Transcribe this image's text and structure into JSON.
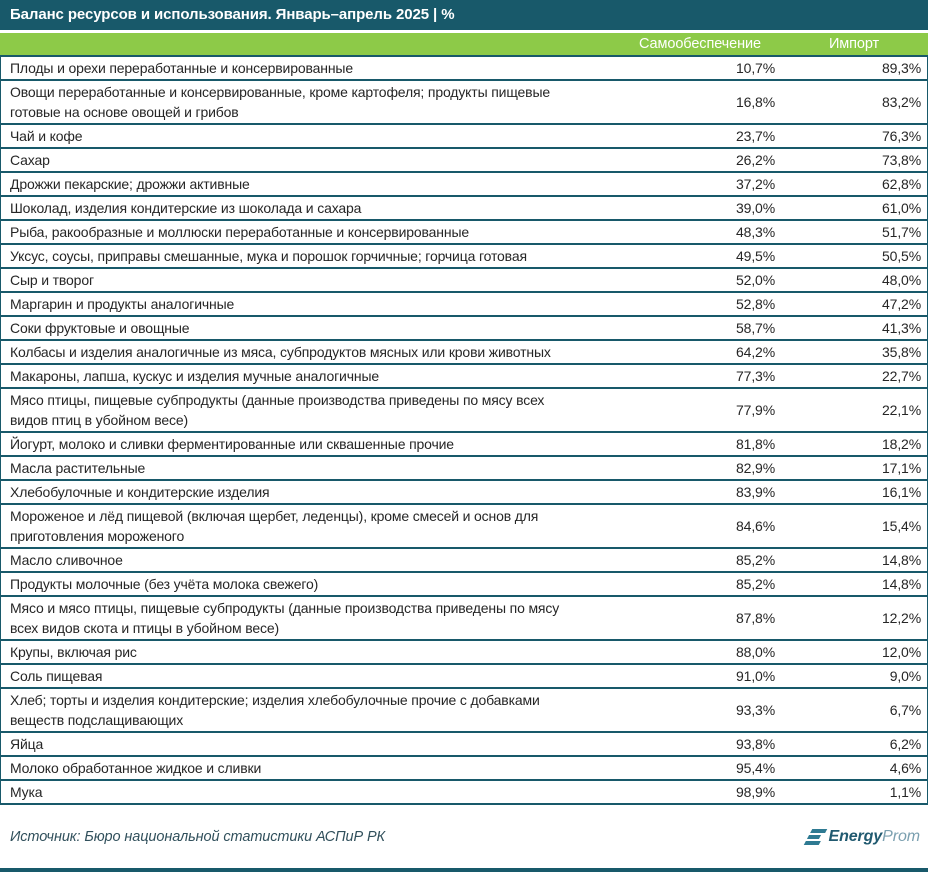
{
  "chart_data": {
    "type": "table",
    "title": "Баланс ресурсов и использования. Январь–апрель 2025 | %",
    "unit": "%",
    "columns": [
      "Самообеспечение",
      "Импорт"
    ],
    "rows": [
      {
        "name": "Плоды и орехи переработанные и консервированные",
        "self_sufficiency": "10,7%",
        "import": "89,3%"
      },
      {
        "name": "Овощи переработанные и консервированные, кроме картофеля; продукты пищевые готовые на основе овощей и грибов",
        "self_sufficiency": "16,8%",
        "import": "83,2%"
      },
      {
        "name": "Чай и кофе",
        "self_sufficiency": "23,7%",
        "import": "76,3%"
      },
      {
        "name": "Сахар",
        "self_sufficiency": "26,2%",
        "import": "73,8%"
      },
      {
        "name": "Дрожжи пекарские; дрожжи активные",
        "self_sufficiency": "37,2%",
        "import": "62,8%"
      },
      {
        "name": "Шоколад, изделия кондитерские из шоколада и сахара",
        "self_sufficiency": "39,0%",
        "import": "61,0%"
      },
      {
        "name": "Рыба, ракообразные и моллюски переработанные и консервированные",
        "self_sufficiency": "48,3%",
        "import": "51,7%"
      },
      {
        "name": "Уксус, соусы, приправы смешанные, мука и порошок горчичные; горчица готовая",
        "self_sufficiency": "49,5%",
        "import": "50,5%"
      },
      {
        "name": "Сыр и творог",
        "self_sufficiency": "52,0%",
        "import": "48,0%"
      },
      {
        "name": "Маргарин и продукты аналогичные",
        "self_sufficiency": "52,8%",
        "import": "47,2%"
      },
      {
        "name": "Соки фруктовые и овощные",
        "self_sufficiency": "58,7%",
        "import": "41,3%"
      },
      {
        "name": "Колбасы и изделия аналогичные из мяса, субпродуктов мясных или крови животных",
        "self_sufficiency": "64,2%",
        "import": "35,8%"
      },
      {
        "name": "Макароны, лапша, кускус и изделия мучные аналогичные",
        "self_sufficiency": "77,3%",
        "import": "22,7%"
      },
      {
        "name": "Мясо птицы, пищевые субпродукты (данные производства приведены по мясу всех видов птиц в убойном весе)",
        "self_sufficiency": "77,9%",
        "import": "22,1%"
      },
      {
        "name": "Йогурт, молоко и сливки ферментированные или сквашенные прочие",
        "self_sufficiency": "81,8%",
        "import": "18,2%"
      },
      {
        "name": "Масла растительные",
        "self_sufficiency": "82,9%",
        "import": "17,1%"
      },
      {
        "name": "Хлебобулочные и кондитерские изделия",
        "self_sufficiency": "83,9%",
        "import": "16,1%"
      },
      {
        "name": "Мороженое и лёд пищевой (включая щербет, леденцы), кроме смесей и основ для приготовления мороженого",
        "self_sufficiency": "84,6%",
        "import": "15,4%"
      },
      {
        "name": "Масло сливочное",
        "self_sufficiency": "85,2%",
        "import": "14,8%"
      },
      {
        "name": "Продукты молочные (без учёта молока свежего)",
        "self_sufficiency": "85,2%",
        "import": "14,8%"
      },
      {
        "name": "Мясо и мясо птицы, пищевые субпродукты (данные производства приведены по мясу всех видов скота и птицы в убойном весе)",
        "self_sufficiency": "87,8%",
        "import": "12,2%"
      },
      {
        "name": "Крупы, включая рис",
        "self_sufficiency": "88,0%",
        "import": "12,0%"
      },
      {
        "name": "Соль пищевая",
        "self_sufficiency": "91,0%",
        "import": "9,0%"
      },
      {
        "name": "Хлеб; торты и изделия кондитерские; изделия хлебобулочные прочие с добавками веществ подслащивающих",
        "self_sufficiency": "93,3%",
        "import": "6,7%"
      },
      {
        "name": "Яйца",
        "self_sufficiency": "93,8%",
        "import": "6,2%"
      },
      {
        "name": "Молоко обработанное жидкое и сливки",
        "self_sufficiency": "95,4%",
        "import": "4,6%"
      },
      {
        "name": "Мука",
        "self_sufficiency": "98,9%",
        "import": "1,1%"
      }
    ]
  },
  "footer": {
    "source": "Источник: Бюро национальной статистики АСПиР РК",
    "brand_bold": "Energy",
    "brand_light": "Prom",
    "logo_icon": "energyprom-e-icon"
  },
  "colors": {
    "titlebar_bg": "#18596a",
    "header_bg": "#8dca48",
    "header_text": "#ffffff",
    "border": "#18596a",
    "row_text": "#262626",
    "source_text": "#31505c",
    "logo_dark": "#215a70",
    "logo_light": "#7ba0b0"
  }
}
